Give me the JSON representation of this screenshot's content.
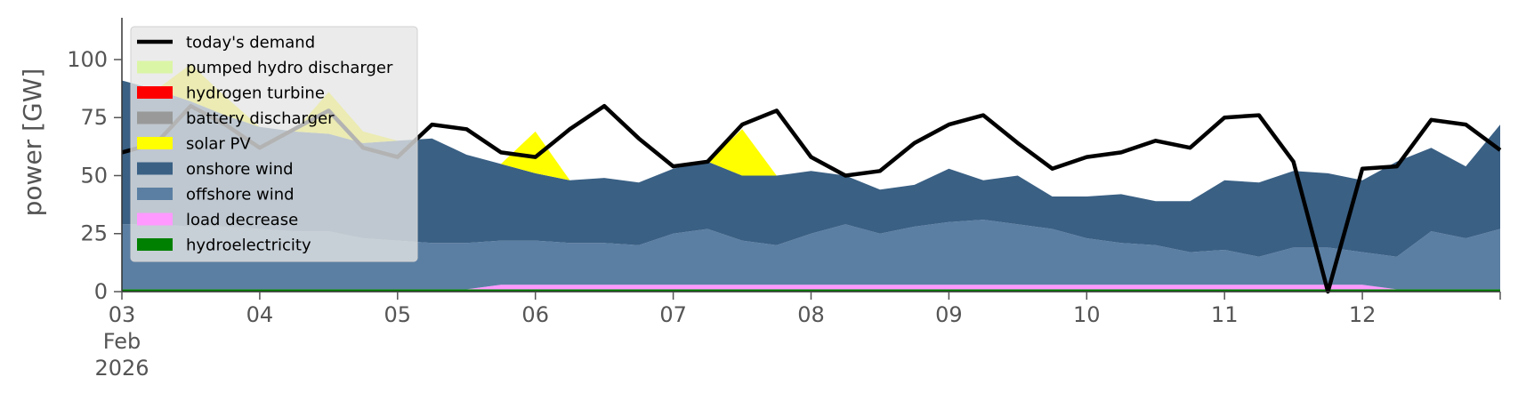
{
  "chart_data": {
    "type": "area",
    "ylabel": "power [GW]",
    "ylim": [
      0,
      118
    ],
    "yticks": [
      0,
      25,
      50,
      75,
      100
    ],
    "xlim": [
      "2026-02-03T00:00",
      "2026-02-13T00:00"
    ],
    "xticks": [
      {
        "x": "2026-02-03T00:00",
        "lines": [
          "03",
          "Feb",
          "2026"
        ]
      },
      {
        "x": "2026-02-04T00:00",
        "lines": [
          "04"
        ]
      },
      {
        "x": "2026-02-05T00:00",
        "lines": [
          "05"
        ]
      },
      {
        "x": "2026-02-06T00:00",
        "lines": [
          "06"
        ]
      },
      {
        "x": "2026-02-07T00:00",
        "lines": [
          "07"
        ]
      },
      {
        "x": "2026-02-08T00:00",
        "lines": [
          "08"
        ]
      },
      {
        "x": "2026-02-09T00:00",
        "lines": [
          "09"
        ]
      },
      {
        "x": "2026-02-10T00:00",
        "lines": [
          "10"
        ]
      },
      {
        "x": "2026-02-11T00:00",
        "lines": [
          "11"
        ]
      },
      {
        "x": "2026-02-12T00:00",
        "lines": [
          "12"
        ]
      }
    ],
    "grid": false,
    "legend_position": "top-left",
    "time_step": "6h",
    "series": [
      {
        "name": "hydroelectricity",
        "color": "#008000",
        "values": [
          1,
          1,
          1,
          1,
          1,
          1,
          1,
          1,
          1,
          1,
          1,
          1,
          1,
          1,
          1,
          1,
          1,
          1,
          1,
          1,
          1,
          1,
          1,
          1,
          1,
          1,
          1,
          1,
          1,
          1,
          1,
          1,
          1,
          1,
          1,
          1,
          1,
          1,
          1,
          1,
          1
        ]
      },
      {
        "name": "load decrease",
        "color": "#ff99ff",
        "values": [
          0,
          0,
          0,
          0,
          0,
          0,
          0,
          0,
          0,
          0,
          0,
          2,
          2,
          2,
          2,
          2,
          2,
          2,
          2,
          2,
          2,
          2,
          2,
          2,
          2,
          2,
          2,
          2,
          2,
          2,
          2,
          2,
          2,
          2,
          2,
          2,
          2,
          0,
          0,
          0,
          0
        ]
      },
      {
        "name": "offshore wind",
        "color": "#5b7fa3",
        "values": [
          28,
          28,
          27,
          27,
          26,
          25,
          25,
          22,
          21,
          20,
          20,
          19,
          19,
          18,
          18,
          17,
          22,
          24,
          19,
          17,
          22,
          26,
          22,
          25,
          27,
          28,
          26,
          24,
          20,
          18,
          17,
          14,
          15,
          12,
          16,
          16,
          14,
          14,
          25,
          22,
          26
        ]
      },
      {
        "name": "onshore wind",
        "color": "#3a6084",
        "values": [
          62,
          58,
          54,
          48,
          44,
          43,
          42,
          41,
          43,
          45,
          38,
          33,
          29,
          27,
          28,
          27,
          28,
          29,
          28,
          30,
          27,
          21,
          19,
          18,
          23,
          17,
          21,
          14,
          18,
          21,
          19,
          22,
          30,
          32,
          33,
          32,
          31,
          41,
          36,
          31,
          45
        ]
      },
      {
        "name": "solar PV",
        "color": "#ffff00",
        "values": [
          0,
          0,
          16,
          8,
          0,
          0,
          18,
          5,
          0,
          0,
          0,
          0,
          18,
          0,
          0,
          0,
          0,
          0,
          20,
          0,
          0,
          0,
          0,
          0,
          0,
          0,
          0,
          0,
          0,
          0,
          0,
          0,
          0,
          0,
          0,
          0,
          0,
          0,
          0,
          0,
          0
        ]
      },
      {
        "name": "battery discharger",
        "color": "#999999",
        "values": [
          0,
          0,
          0,
          0,
          0,
          0,
          0,
          0,
          0,
          0,
          0,
          0,
          0,
          0,
          0,
          0,
          0,
          0,
          0,
          0,
          0,
          0,
          0,
          0,
          0,
          0,
          0,
          0,
          0,
          0,
          0,
          0,
          0,
          0,
          0,
          0,
          0,
          0,
          0,
          0,
          0
        ]
      },
      {
        "name": "hydrogen turbine",
        "color": "#ff0000",
        "values": [
          0,
          0,
          0,
          0,
          0,
          0,
          0,
          0,
          0,
          0,
          0,
          0,
          0,
          0,
          0,
          0,
          0,
          0,
          0,
          0,
          0,
          0,
          0,
          0,
          0,
          0,
          0,
          0,
          0,
          0,
          0,
          0,
          0,
          0,
          0,
          0,
          0,
          0,
          0,
          0,
          0
        ]
      },
      {
        "name": "pumped hydro discharger",
        "color": "#dbf5a6",
        "values": [
          0,
          0,
          0,
          0,
          0,
          0,
          0,
          0,
          0,
          0,
          0,
          0,
          0,
          0,
          0,
          0,
          0,
          0,
          0,
          0,
          0,
          0,
          0,
          0,
          0,
          0,
          0,
          0,
          0,
          0,
          0,
          0,
          0,
          0,
          0,
          0,
          0,
          0,
          0,
          0,
          0
        ]
      }
    ],
    "demand": {
      "name": "today's demand",
      "color": "#000000",
      "values": [
        60,
        64,
        80,
        72,
        62,
        70,
        78,
        62,
        58,
        72,
        70,
        60,
        58,
        70,
        80,
        66,
        54,
        56,
        72,
        78,
        58,
        50,
        52,
        64,
        72,
        76,
        64,
        53,
        58,
        60,
        65,
        62,
        75,
        76,
        56,
        0,
        53,
        54,
        74,
        72,
        61
      ]
    }
  }
}
